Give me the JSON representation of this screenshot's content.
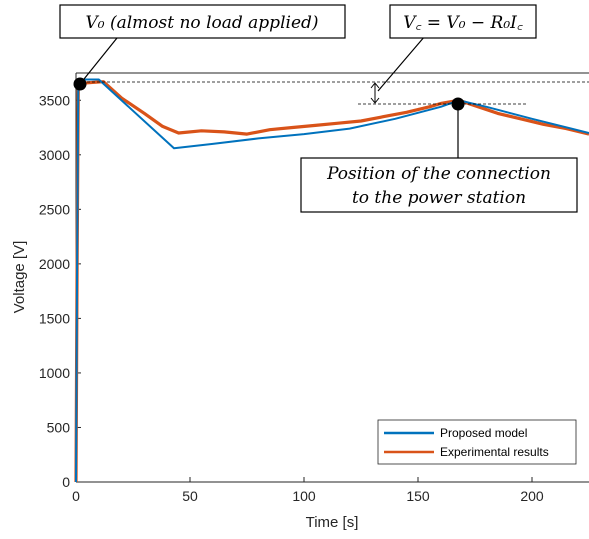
{
  "chart_data": {
    "type": "line",
    "xlabel": "Time [s]",
    "ylabel": "Voltage [V]",
    "xlim": [
      0,
      225
    ],
    "ylim": [
      0,
      3750
    ],
    "xticks": [
      0,
      50,
      100,
      150,
      200
    ],
    "yticks": [
      0,
      500,
      1000,
      1500,
      2000,
      2500,
      3000,
      3500
    ],
    "grid": false,
    "legend_position": "bottom-right",
    "colors": {
      "model": "#0072BD",
      "experimental": "#D95319"
    },
    "series": [
      {
        "name": "Proposed model",
        "x": [
          0,
          0.5,
          1,
          10,
          43,
          60,
          80,
          100,
          120,
          140,
          160,
          168,
          180,
          200,
          225
        ],
        "y": [
          0,
          2000,
          3690,
          3690,
          3060,
          3100,
          3150,
          3190,
          3240,
          3330,
          3440,
          3500,
          3440,
          3330,
          3200
        ]
      },
      {
        "name": "Experimental results",
        "x": [
          0,
          0.5,
          1,
          5,
          12,
          20,
          30,
          38,
          45,
          55,
          65,
          75,
          85,
          95,
          105,
          115,
          125,
          135,
          145,
          155,
          160,
          165,
          168,
          175,
          185,
          195,
          205,
          215,
          225
        ],
        "y": [
          0,
          2000,
          3650,
          3660,
          3670,
          3520,
          3380,
          3260,
          3200,
          3220,
          3210,
          3190,
          3230,
          3250,
          3270,
          3290,
          3310,
          3350,
          3390,
          3440,
          3470,
          3490,
          3500,
          3450,
          3380,
          3330,
          3280,
          3240,
          3190
        ]
      }
    ],
    "annotations": {
      "v0_label": "V₀ (almost no load applied)",
      "vc_label": "V꜀ = V₀ − R₀I꜀",
      "connection_label_line1": "Position of the connection",
      "connection_label_line2": "to the power station",
      "v0_point": {
        "x": 1,
        "y": 3690
      },
      "connection_point": {
        "x": 168,
        "y": 3500
      }
    }
  }
}
